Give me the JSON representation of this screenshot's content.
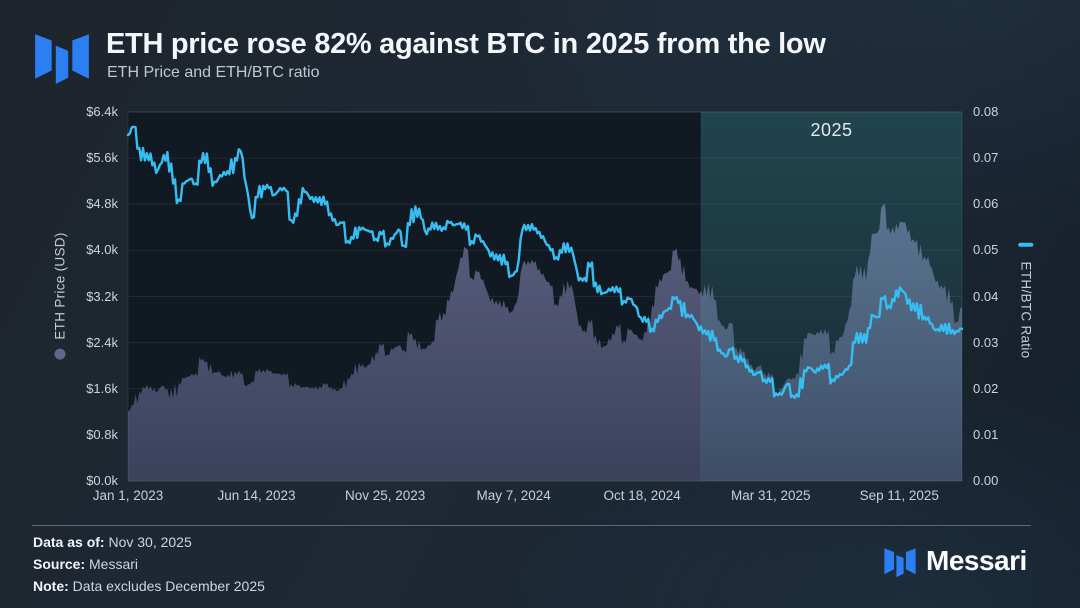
{
  "header": {
    "title": "ETH price rose 82% against BTC in 2025 from the low",
    "subtitle": "ETH Price and ETH/BTC ratio"
  },
  "footer": {
    "data_as_of_label": "Data as of:",
    "data_as_of_value": " Nov 30, 2025",
    "source_label": "Source:",
    "source_value": " Messari",
    "note_label": "Note:",
    "note_value": " Data excludes December 2025",
    "brand_wordmark": "Messari"
  },
  "colors": {
    "brand_blue": "#2b7ff2",
    "ratio_line_cyan": "#36bef2",
    "area_top": "#5f6384",
    "area_bottom": "#3f4460",
    "highlight_teal": "rgba(80,190,200,0.26)",
    "plot_background": "#111923"
  },
  "chart_data": {
    "type": "area+line",
    "title": "ETH price rose 82% against BTC in 2025 from the low",
    "subtitle": "ETH Price and ETH/BTC ratio",
    "x_start": "Jan 1, 2023",
    "x_end": "Nov 30, 2025",
    "cadence": "weekly",
    "grid": "horizontal",
    "annotation": {
      "label": "2025",
      "start_pos": 0.687,
      "end_pos": 1.0
    },
    "x_ticks": [
      {
        "label": "Jan 1, 2023",
        "pos": 0.0
      },
      {
        "label": "Jun 14, 2023",
        "pos": 0.1541
      },
      {
        "label": "Nov 25, 2023",
        "pos": 0.3083
      },
      {
        "label": "May 7, 2024",
        "pos": 0.4624
      },
      {
        "label": "Oct 18, 2024",
        "pos": 0.6165
      },
      {
        "label": "Mar 31, 2025",
        "pos": 0.7707
      },
      {
        "label": "Sep 11, 2025",
        "pos": 0.9248
      }
    ],
    "y_left": {
      "title": "ETH Price (USD)",
      "min": 0,
      "max": 6400,
      "ticks": [
        "$6.4k",
        "$5.6k",
        "$4.8k",
        "$4.0k",
        "$3.2k",
        "$2.4k",
        "$1.6k",
        "$0.8k",
        "$0.0k"
      ]
    },
    "y_right": {
      "title": "ETH/BTC Ratio",
      "min": 0,
      "max": 0.08,
      "ticks": [
        "0.08",
        "0.07",
        "0.06",
        "0.05",
        "0.04",
        "0.03",
        "0.02",
        "0.01",
        "0.00"
      ]
    },
    "series": [
      {
        "name": "ETH Price (USD)",
        "type": "area",
        "axis": "left",
        "values": [
          1200,
          1320,
          1550,
          1600,
          1650,
          1530,
          1640,
          1600,
          1440,
          1700,
          1780,
          1820,
          1870,
          2090,
          2080,
          1860,
          1900,
          1830,
          1800,
          1900,
          1860,
          1640,
          1730,
          1890,
          1930,
          1900,
          1870,
          1860,
          1830,
          1680,
          1650,
          1630,
          1630,
          1590,
          1640,
          1670,
          1630,
          1560,
          1600,
          1790,
          1830,
          2050,
          1960,
          2030,
          2240,
          2340,
          2200,
          2280,
          2350,
          2270,
          2530,
          2470,
          2270,
          2310,
          2420,
          2780,
          2920,
          3110,
          3430,
          3880,
          4030,
          3520,
          3620,
          3500,
          3220,
          3060,
          3130,
          3000,
          2930,
          3100,
          3750,
          3820,
          3780,
          3680,
          3510,
          3380,
          3070,
          3180,
          3480,
          3280,
          2690,
          2610,
          2740,
          2530,
          2300,
          2360,
          2560,
          2660,
          2440,
          2620,
          2540,
          2460,
          2560,
          3060,
          3350,
          3580,
          3640,
          3990,
          3870,
          3450,
          3360,
          3320,
          3200,
          3430,
          3130,
          2780,
          2630,
          2740,
          2300,
          2220,
          2130,
          1910,
          1990,
          1870,
          1810,
          1520,
          1600,
          1760,
          1790,
          1840,
          2480,
          2560,
          2530,
          2620,
          2540,
          2250,
          2420,
          2560,
          2960,
          3550,
          3740,
          3480,
          4280,
          4310,
          4780,
          4390,
          4300,
          4500,
          4480,
          4150,
          4180,
          3820,
          3890,
          3560,
          3340,
          3390,
          3070,
          2760,
          3020
        ]
      },
      {
        "name": "ETH/BTC Ratio",
        "type": "line",
        "axis": "right",
        "values": [
          0.075,
          0.0768,
          0.0722,
          0.0695,
          0.071,
          0.0668,
          0.069,
          0.0713,
          0.0645,
          0.061,
          0.0645,
          0.0655,
          0.0645,
          0.069,
          0.071,
          0.064,
          0.0655,
          0.067,
          0.0665,
          0.07,
          0.0715,
          0.064,
          0.057,
          0.0615,
          0.064,
          0.0635,
          0.062,
          0.0635,
          0.063,
          0.0565,
          0.0575,
          0.0635,
          0.062,
          0.0605,
          0.0615,
          0.06,
          0.058,
          0.0555,
          0.056,
          0.052,
          0.0525,
          0.055,
          0.0545,
          0.054,
          0.0525,
          0.0535,
          0.0515,
          0.0525,
          0.0545,
          0.051,
          0.0555,
          0.0595,
          0.057,
          0.0535,
          0.056,
          0.0545,
          0.055,
          0.056,
          0.0555,
          0.056,
          0.0545,
          0.052,
          0.053,
          0.052,
          0.05,
          0.048,
          0.049,
          0.047,
          0.0445,
          0.0455,
          0.0545,
          0.0555,
          0.0545,
          0.054,
          0.052,
          0.05,
          0.0485,
          0.0495,
          0.0515,
          0.049,
          0.0435,
          0.044,
          0.0465,
          0.043,
          0.0405,
          0.041,
          0.042,
          0.041,
          0.039,
          0.0395,
          0.038,
          0.0355,
          0.0345,
          0.033,
          0.0345,
          0.0365,
          0.0375,
          0.0395,
          0.039,
          0.0355,
          0.036,
          0.034,
          0.032,
          0.0325,
          0.0305,
          0.0285,
          0.027,
          0.0285,
          0.027,
          0.026,
          0.025,
          0.023,
          0.0235,
          0.022,
          0.0215,
          0.019,
          0.0187,
          0.021,
          0.0185,
          0.0183,
          0.024,
          0.0245,
          0.0235,
          0.025,
          0.0245,
          0.022,
          0.0225,
          0.0235,
          0.025,
          0.03,
          0.032,
          0.03,
          0.036,
          0.0355,
          0.0395,
          0.038,
          0.039,
          0.042,
          0.0405,
          0.037,
          0.0385,
          0.035,
          0.0355,
          0.033,
          0.0325,
          0.034,
          0.032,
          0.0325,
          0.033
        ]
      }
    ]
  }
}
